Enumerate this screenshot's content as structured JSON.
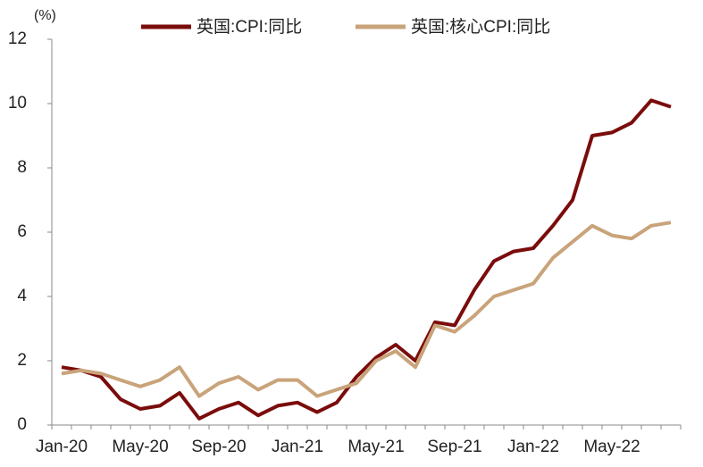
{
  "chart_data": {
    "type": "line",
    "unit_label": "(%)",
    "categories": [
      "Jan-20",
      null,
      null,
      null,
      "May-20",
      null,
      null,
      null,
      "Sep-20",
      null,
      null,
      null,
      "Jan-21",
      null,
      null,
      null,
      "May-21",
      null,
      null,
      null,
      "Sep-21",
      null,
      null,
      null,
      "Jan-22",
      null,
      null,
      null,
      "May-22",
      null,
      null,
      null
    ],
    "series": [
      {
        "name": "英国:CPI:同比",
        "color": "#7b0c0c",
        "values": [
          1.8,
          1.7,
          1.5,
          0.8,
          0.5,
          0.6,
          1.0,
          0.2,
          0.5,
          0.7,
          0.3,
          0.6,
          0.7,
          0.4,
          0.7,
          1.5,
          2.1,
          2.5,
          2.0,
          3.2,
          3.1,
          4.2,
          5.1,
          5.4,
          5.5,
          6.2,
          7.0,
          9.0,
          9.1,
          9.4,
          10.1,
          9.9
        ]
      },
      {
        "name": "英国:核心CPI:同比",
        "color": "#c9a37a",
        "values": [
          1.6,
          1.7,
          1.6,
          1.4,
          1.2,
          1.4,
          1.8,
          0.9,
          1.3,
          1.5,
          1.1,
          1.4,
          1.4,
          0.9,
          1.1,
          1.3,
          2.0,
          2.3,
          1.8,
          3.1,
          2.9,
          3.4,
          4.0,
          4.2,
          4.4,
          5.2,
          5.7,
          6.2,
          5.9,
          5.8,
          6.2,
          6.3
        ]
      }
    ],
    "ylim": [
      0,
      12
    ],
    "yticks": [
      0,
      2,
      4,
      6,
      8,
      10,
      12
    ],
    "legend": "top"
  }
}
